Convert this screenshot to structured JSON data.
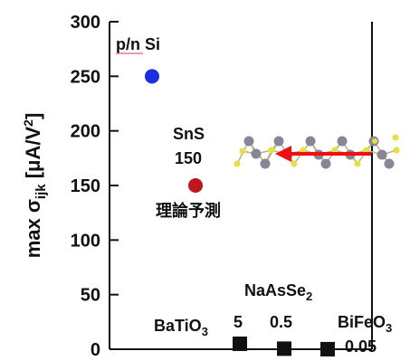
{
  "chart_data": {
    "type": "scatter",
    "ylim": [
      0,
      300
    ],
    "yticks": [
      0,
      50,
      100,
      150,
      200,
      250,
      300
    ],
    "ylabel": {
      "prefix": "max σ",
      "subscript": "ijk",
      "unit": "[μA/V",
      "superscript": "2",
      "suffix": "]"
    },
    "points": [
      {
        "label": "p/n Si",
        "y": 250,
        "color": "#1a2ee6",
        "marker": "circle"
      },
      {
        "label": "SnS 150 理論予測",
        "y": 150,
        "color": "#c0151c",
        "marker": "circle"
      },
      {
        "label": "BaTiO3",
        "y": 5,
        "color": "#111111",
        "marker": "square"
      },
      {
        "label": "NaAsSe2",
        "y": 0.5,
        "color": "#111111",
        "marker": "square"
      },
      {
        "label": "BiFeO3",
        "y": 0.05,
        "color": "#111111",
        "marker": "square"
      }
    ],
    "annotations": {
      "pn_si": "p/n Si",
      "sns_name": "SnS",
      "sns_value": "150",
      "sns_note": "理論予測",
      "batio3_main": "BaTiO",
      "batio3_sub": "3",
      "batio3_value": "5",
      "naasse2_main": "NaAsSe",
      "naasse2_sub": "2",
      "naasse2_value": "0.5",
      "bifeo3_main": "BiFeO",
      "bifeo3_sub": "3",
      "bifeo3_value": "0.05"
    },
    "grid": false,
    "legend": "none",
    "inset": "SnS crystal structure with red polarization arrow"
  }
}
